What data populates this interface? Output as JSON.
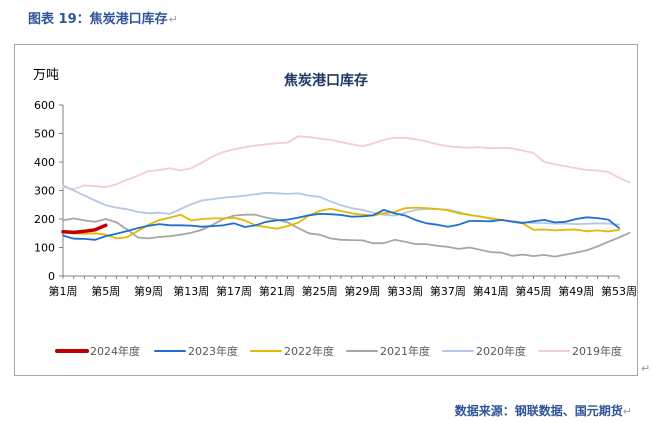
{
  "caption": {
    "label": "图表 19：焦炭港口库存",
    "mark": "↵"
  },
  "source": {
    "text": "数据来源：钢联数据、国元期货",
    "mark": "↵"
  },
  "corner_mark": "↵",
  "chart_data": {
    "type": "line",
    "title": "焦炭港口库存",
    "ylabel": "万吨",
    "xlabel": "",
    "ylim": [
      0,
      600
    ],
    "yticks": [
      0,
      100,
      200,
      300,
      400,
      500,
      600
    ],
    "grid": false,
    "legend_position": "bottom",
    "x_tick_labels": [
      "第1周",
      "第5周",
      "第9周",
      "第13周",
      "第17周",
      "第21周",
      "第25周",
      "第29周",
      "第33周",
      "第37周",
      "第41周",
      "第45周",
      "第49周",
      "第53周"
    ],
    "x_tick_weeks": [
      1,
      5,
      9,
      13,
      17,
      21,
      25,
      29,
      33,
      37,
      41,
      45,
      49,
      53
    ],
    "series": [
      {
        "name": "2024年度",
        "color": "#c00000",
        "start_week": 1,
        "values": [
          155,
          153,
          157,
          162,
          178
        ]
      },
      {
        "name": "2023年度",
        "color": "#1f6fd0",
        "start_week": 1,
        "values": [
          142,
          131,
          130,
          127,
          140,
          148,
          158,
          168,
          176,
          182,
          178,
          178,
          177,
          173,
          175,
          178,
          185,
          172,
          178,
          190,
          195,
          198,
          205,
          213,
          218,
          217,
          214,
          208,
          209,
          213,
          232,
          220,
          212,
          196,
          185,
          180,
          173,
          180,
          193,
          193,
          192,
          197,
          191,
          186,
          192,
          197,
          188,
          190,
          200,
          206,
          203,
          198,
          168
        ]
      },
      {
        "name": "2022年度",
        "color": "#e6b800",
        "start_week": 1,
        "values": [
          155,
          150,
          148,
          150,
          145,
          132,
          136,
          158,
          180,
          196,
          205,
          215,
          195,
          200,
          202,
          202,
          204,
          195,
          178,
          172,
          166,
          175,
          187,
          212,
          228,
          236,
          228,
          220,
          215,
          212,
          220,
          225,
          238,
          240,
          238,
          235,
          230,
          220,
          215,
          208,
          203,
          197,
          190,
          185,
          162,
          163,
          160,
          162,
          163,
          157,
          160,
          156,
          162
        ]
      },
      {
        "name": "2021年度",
        "color": "#a6a6a6",
        "start_week": 1,
        "values": [
          195,
          202,
          195,
          190,
          200,
          188,
          163,
          135,
          132,
          137,
          140,
          145,
          152,
          162,
          180,
          200,
          212,
          215,
          215,
          205,
          198,
          188,
          168,
          150,
          145,
          132,
          127,
          126,
          125,
          115,
          115,
          127,
          120,
          112,
          112,
          106,
          102,
          95,
          100,
          92,
          84,
          82,
          71,
          75,
          70,
          74,
          68,
          75,
          82,
          90,
          104,
          120,
          135,
          152
        ]
      },
      {
        "name": "2020年度",
        "color": "#b4c7e7",
        "start_week": 1,
        "values": [
          318,
          300,
          282,
          265,
          248,
          240,
          234,
          225,
          220,
          222,
          218,
          235,
          252,
          265,
          270,
          275,
          278,
          282,
          287,
          292,
          290,
          288,
          290,
          282,
          278,
          262,
          248,
          238,
          232,
          222,
          215,
          212,
          222,
          232,
          235,
          235,
          233,
          225,
          213,
          210,
          200,
          196,
          193,
          188,
          186,
          186,
          184,
          184,
          182,
          183,
          185,
          184,
          180
        ]
      },
      {
        "name": "2019年度",
        "color": "#f2cdd4",
        "start_week": 1,
        "values": [
          312,
          305,
          318,
          315,
          312,
          322,
          338,
          352,
          368,
          372,
          378,
          370,
          378,
          398,
          420,
          435,
          445,
          452,
          458,
          462,
          466,
          468,
          490,
          488,
          482,
          478,
          470,
          462,
          455,
          465,
          478,
          485,
          485,
          480,
          472,
          462,
          455,
          452,
          450,
          452,
          448,
          450,
          448,
          440,
          432,
          400,
          392,
          385,
          378,
          372,
          370,
          365,
          345,
          328
        ]
      }
    ]
  }
}
